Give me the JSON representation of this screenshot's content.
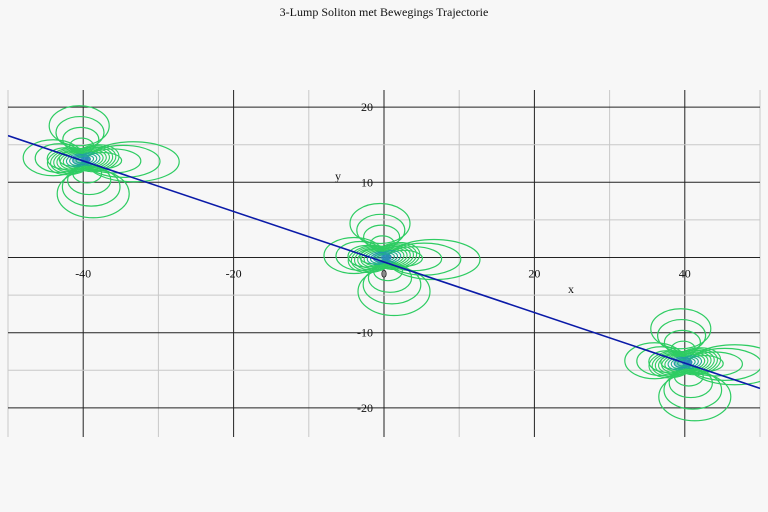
{
  "chart_data": {
    "type": "line",
    "title": "3-Lump Soliton met Bewegings Trajectorie",
    "xlabel": "x",
    "ylabel": "y",
    "xlim": [
      -50,
      50
    ],
    "ylim": [
      -24,
      22
    ],
    "x_ticks": [
      -40,
      -20,
      0,
      20,
      40
    ],
    "y_ticks": [
      -20,
      -10,
      10,
      20
    ],
    "x_tick_labels": [
      "-40",
      "-20",
      "0",
      "20",
      "40"
    ],
    "y_tick_labels": [
      "-20",
      "-10",
      "10",
      "20"
    ],
    "grid": true,
    "legend": "none",
    "series": [
      {
        "kind": "trajectory",
        "color": "#0a1aa8",
        "x": [
          -50,
          50
        ],
        "y": [
          16.2,
          -17.4
        ]
      }
    ],
    "lumps": [
      {
        "center": [
          -40,
          13
        ]
      },
      {
        "center": [
          0,
          0
        ]
      },
      {
        "center": [
          40,
          -14
        ]
      }
    ],
    "contour_colors": [
      "#2ecc62",
      "#1fae8e",
      "#2b7fc7"
    ]
  }
}
